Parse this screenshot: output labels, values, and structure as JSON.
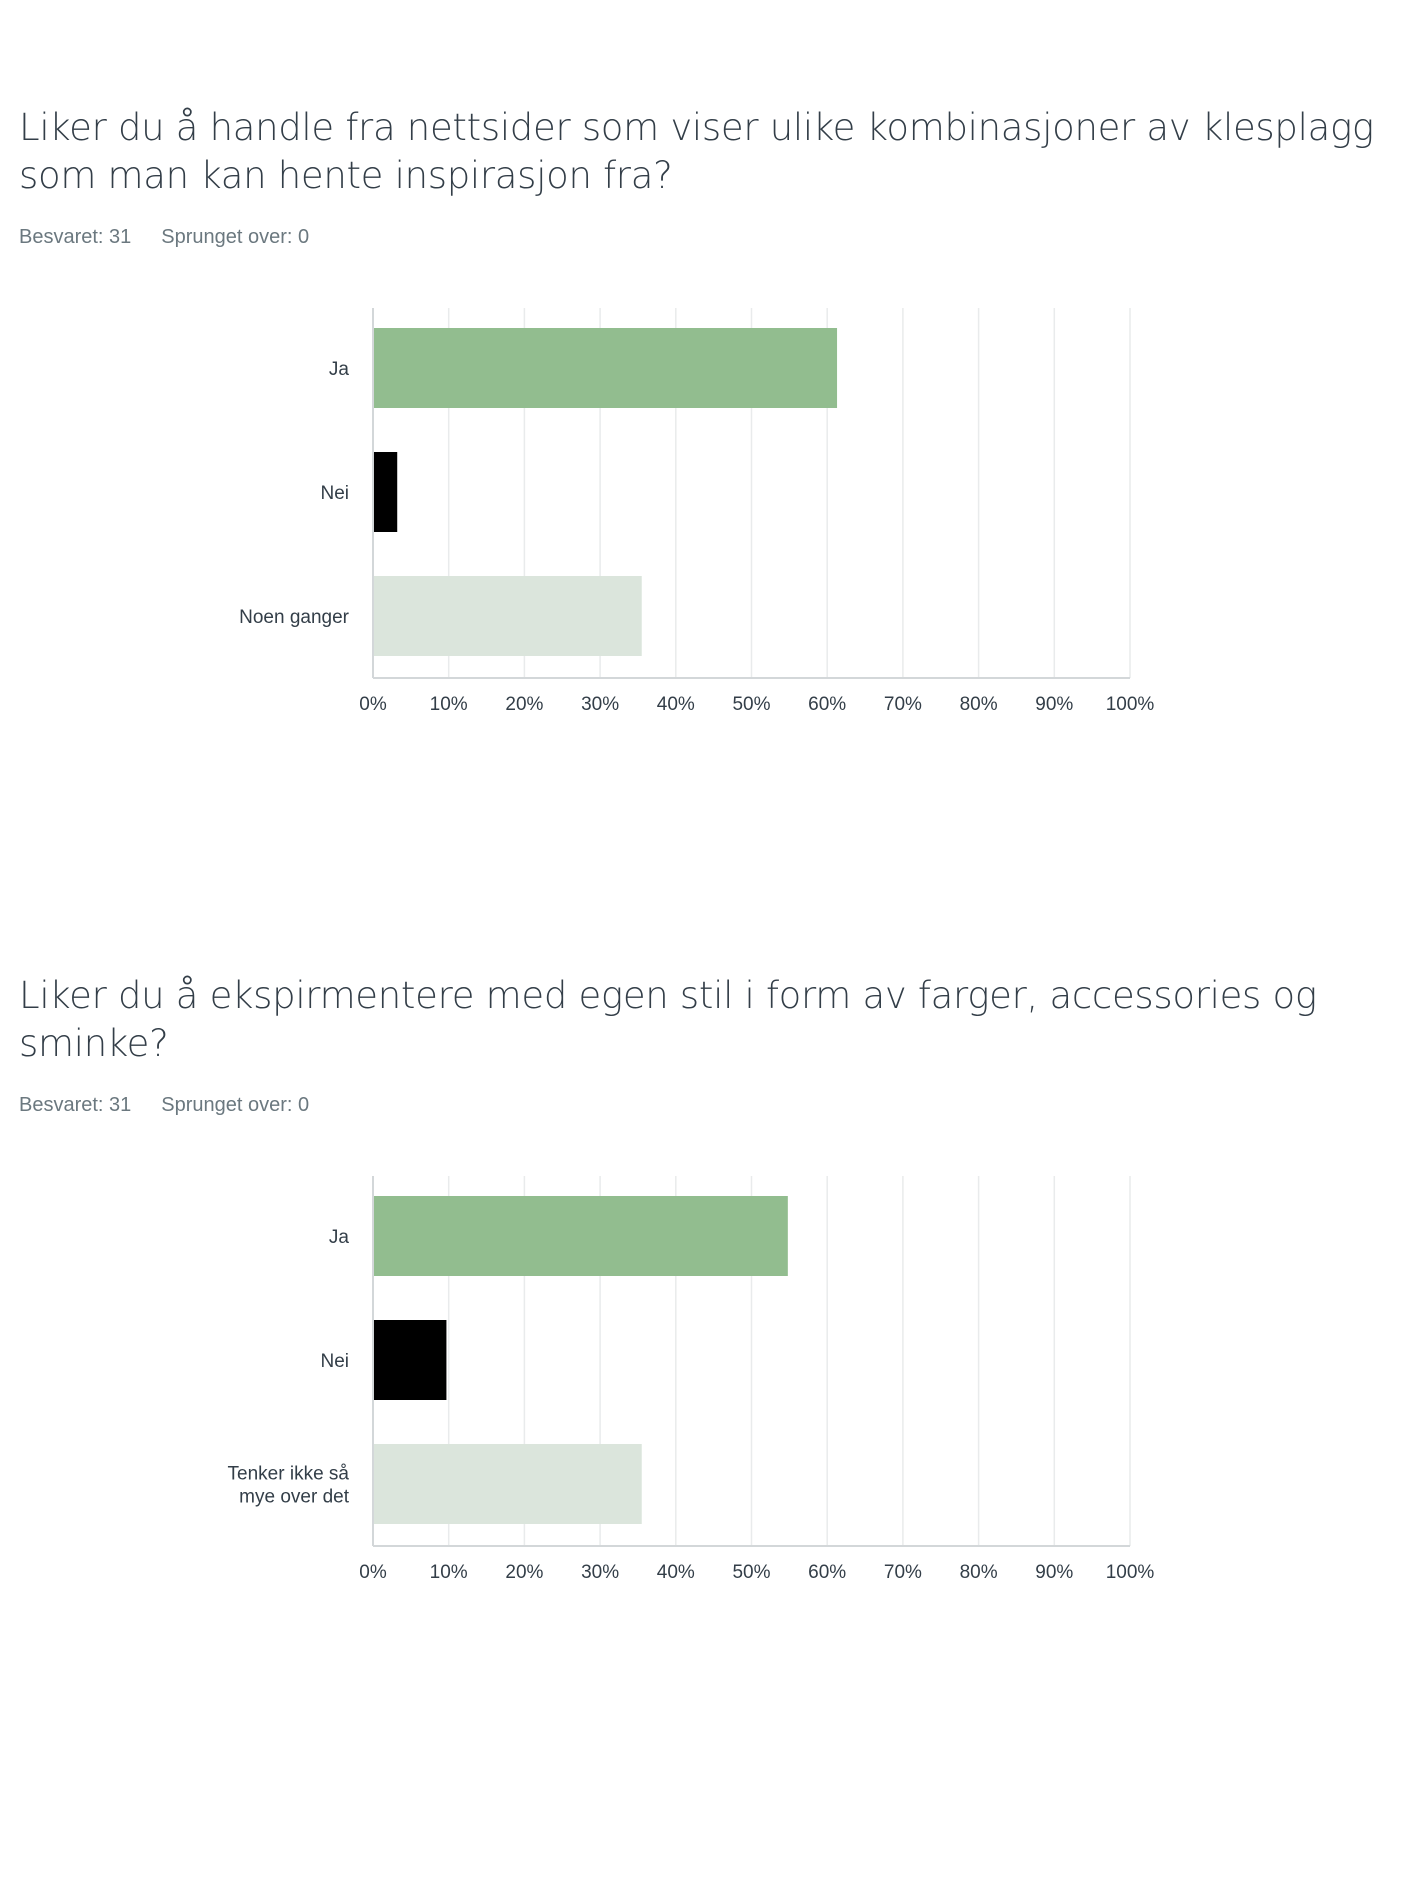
{
  "questions": [
    {
      "title_line1": "Liker du å handle fra nettsider som viser ulike kombinasjoner av klesplagg",
      "title_line2": "som man kan hente inspirasjon fra?",
      "answered": "Besvaret: 31",
      "skipped": "Sprunget over: 0"
    },
    {
      "title_line1": "Liker du å ekspirmentere med egen stil i form av farger, accessories og",
      "title_line2": "sminke?",
      "answered": "Besvaret: 31",
      "skipped": "Sprunget over: 0"
    }
  ],
  "chart_data": [
    {
      "type": "bar",
      "orientation": "horizontal",
      "categories": [
        "Ja",
        "Nei",
        "Noen ganger"
      ],
      "values": [
        61.3,
        3.2,
        35.5
      ],
      "xlim": [
        0,
        100
      ],
      "ticks": [
        "0%",
        "10%",
        "20%",
        "30%",
        "40%",
        "50%",
        "60%",
        "70%",
        "80%",
        "90%",
        "100%"
      ],
      "colors": [
        "#92bd8f",
        "#000000",
        "#dbe5dc"
      ],
      "grid": true
    },
    {
      "type": "bar",
      "orientation": "horizontal",
      "categories": [
        "Ja",
        "Nei",
        "Tenker ikke så|mye over det"
      ],
      "values": [
        54.8,
        9.7,
        35.5
      ],
      "xlim": [
        0,
        100
      ],
      "ticks": [
        "0%",
        "10%",
        "20%",
        "30%",
        "40%",
        "50%",
        "60%",
        "70%",
        "80%",
        "90%",
        "100%"
      ],
      "colors": [
        "#92bd8f",
        "#000000",
        "#dbe5dc"
      ],
      "grid": true
    }
  ]
}
